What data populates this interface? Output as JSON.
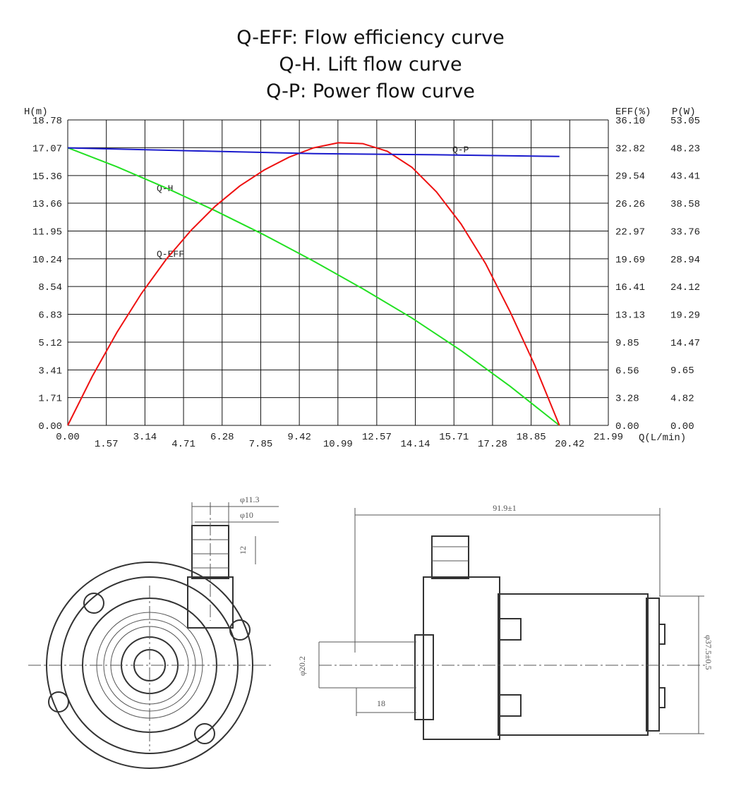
{
  "chart_data": {
    "type": "line",
    "title": [
      "Q-EFF: Flow efficiency curve",
      "Q-H. Lift flow curve",
      "Q-P: Power flow curve"
    ],
    "x_label": "Q(L/min)",
    "y_label": "H(m)",
    "y2_label": "EFF(%)",
    "y3_label": "P(W)",
    "grid": true,
    "xlim": [
      0,
      21.99
    ],
    "xticks": [
      {
        "value": 0,
        "label": "0.00"
      },
      1.57,
      3.14,
      4.71,
      6.28,
      7.85,
      9.42,
      10.99,
      12.57,
      14.14,
      15.71,
      17.28,
      18.85,
      20.42,
      21.99
    ],
    "ylim": [
      0,
      18.78
    ],
    "yticks": [
      {
        "value": 0,
        "label": "0.00"
      },
      1.71,
      3.41,
      5.12,
      6.83,
      8.54,
      10.24,
      11.95,
      13.66,
      15.36,
      17.07,
      18.78
    ],
    "y2lim": [
      0,
      36.1
    ],
    "y2ticks": [
      {
        "value": 0,
        "label": "0.00"
      },
      3.28,
      6.56,
      9.85,
      13.13,
      16.41,
      19.69,
      22.97,
      26.26,
      29.54,
      32.82,
      {
        "value": 36.1,
        "label": "36.10"
      }
    ],
    "y3lim": [
      0,
      53.05
    ],
    "y3ticks": [
      {
        "value": 0,
        "label": "0.00"
      },
      4.82,
      9.65,
      14.47,
      19.29,
      24.12,
      28.94,
      33.76,
      38.58,
      43.41,
      48.23,
      53.05
    ],
    "series": [
      {
        "name": "Q-H",
        "color": "#22e022",
        "axis": "y",
        "x": [
          0,
          2,
          4,
          6,
          8,
          10,
          12,
          14,
          16,
          18,
          20
        ],
        "values": [
          17.07,
          15.9,
          14.6,
          13.2,
          11.7,
          10.1,
          8.4,
          6.6,
          4.6,
          2.4,
          0
        ]
      },
      {
        "name": "Q-EFF",
        "color": "#ee1111",
        "axis": "y2",
        "x": [
          0,
          1,
          2,
          3,
          4,
          5,
          6,
          7,
          8,
          9,
          10,
          11,
          12,
          13,
          14,
          15,
          16,
          17,
          18,
          19,
          20
        ],
        "values": [
          0,
          5.8,
          11.0,
          15.6,
          19.6,
          23.0,
          25.9,
          28.3,
          30.2,
          31.7,
          32.8,
          33.4,
          33.3,
          32.4,
          30.5,
          27.6,
          23.8,
          19.1,
          13.4,
          7.1,
          0
        ]
      },
      {
        "name": "Q-P",
        "color": "#1a1acc",
        "axis": "y3",
        "x": [
          0,
          5,
          10,
          15,
          20
        ],
        "values": [
          48.2,
          47.7,
          47.2,
          47.0,
          46.7
        ]
      }
    ]
  },
  "drawing": {
    "labels": [
      "φ11.3",
      "φ10",
      "12",
      "91.9±1",
      "φ20.2",
      "18",
      "φ37.5±0.5"
    ]
  }
}
